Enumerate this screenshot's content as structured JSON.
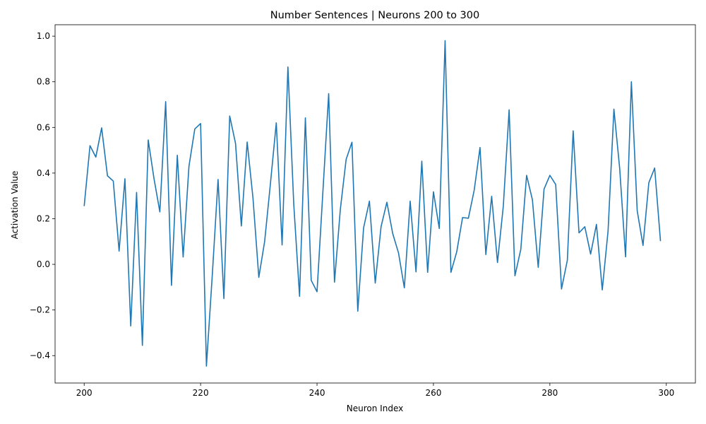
{
  "chart_data": {
    "type": "line",
    "title": "Number Sentences | Neurons 200 to 300",
    "xlabel": "Neuron Index",
    "ylabel": "Activation Value",
    "xlim": [
      195,
      305
    ],
    "ylim": [
      -0.52,
      1.05
    ],
    "xticks": [
      200,
      220,
      240,
      260,
      280,
      300
    ],
    "yticks": [
      -0.4,
      -0.2,
      0.0,
      0.2,
      0.4,
      0.6,
      0.8,
      1.0
    ],
    "xtick_labels": [
      "200",
      "220",
      "240",
      "260",
      "280",
      "300"
    ],
    "ytick_labels": [
      "−0.4",
      "−0.2",
      "0.0",
      "0.2",
      "0.4",
      "0.6",
      "0.8",
      "1.0"
    ],
    "grid": false,
    "line_color": "#1f77b4",
    "series": [
      {
        "x_start": 200,
        "x_end": 299,
        "values": [
          0.255,
          0.52,
          0.47,
          0.598,
          0.388,
          0.365,
          0.058,
          0.375,
          -0.27,
          0.315,
          -0.355,
          0.545,
          0.375,
          0.23,
          0.713,
          -0.092,
          0.478,
          0.032,
          0.43,
          0.593,
          0.617,
          -0.446,
          -0.05,
          0.372,
          -0.15,
          0.65,
          0.53,
          0.168,
          0.536,
          0.29,
          -0.057,
          0.1,
          0.355,
          0.62,
          0.085,
          0.865,
          0.265,
          -0.14,
          0.642,
          -0.07,
          -0.12,
          0.315,
          0.748,
          -0.078,
          0.24,
          0.46,
          0.535,
          -0.205,
          0.16,
          0.277,
          -0.082,
          0.165,
          0.272,
          0.135,
          0.05,
          -0.103,
          0.277,
          -0.033,
          0.452,
          -0.035,
          0.318,
          0.157,
          0.98,
          -0.035,
          0.055,
          0.205,
          0.202,
          0.325,
          0.512,
          0.043,
          0.298,
          0.008,
          0.255,
          0.677,
          -0.05,
          0.065,
          0.39,
          0.283,
          -0.013,
          0.33,
          0.39,
          0.35,
          -0.108,
          0.018,
          0.585,
          0.138,
          0.165,
          0.045,
          0.175,
          -0.112,
          0.148,
          0.68,
          0.418,
          0.033,
          0.8,
          0.235,
          0.083,
          0.358,
          0.422,
          0.102
        ]
      }
    ]
  }
}
